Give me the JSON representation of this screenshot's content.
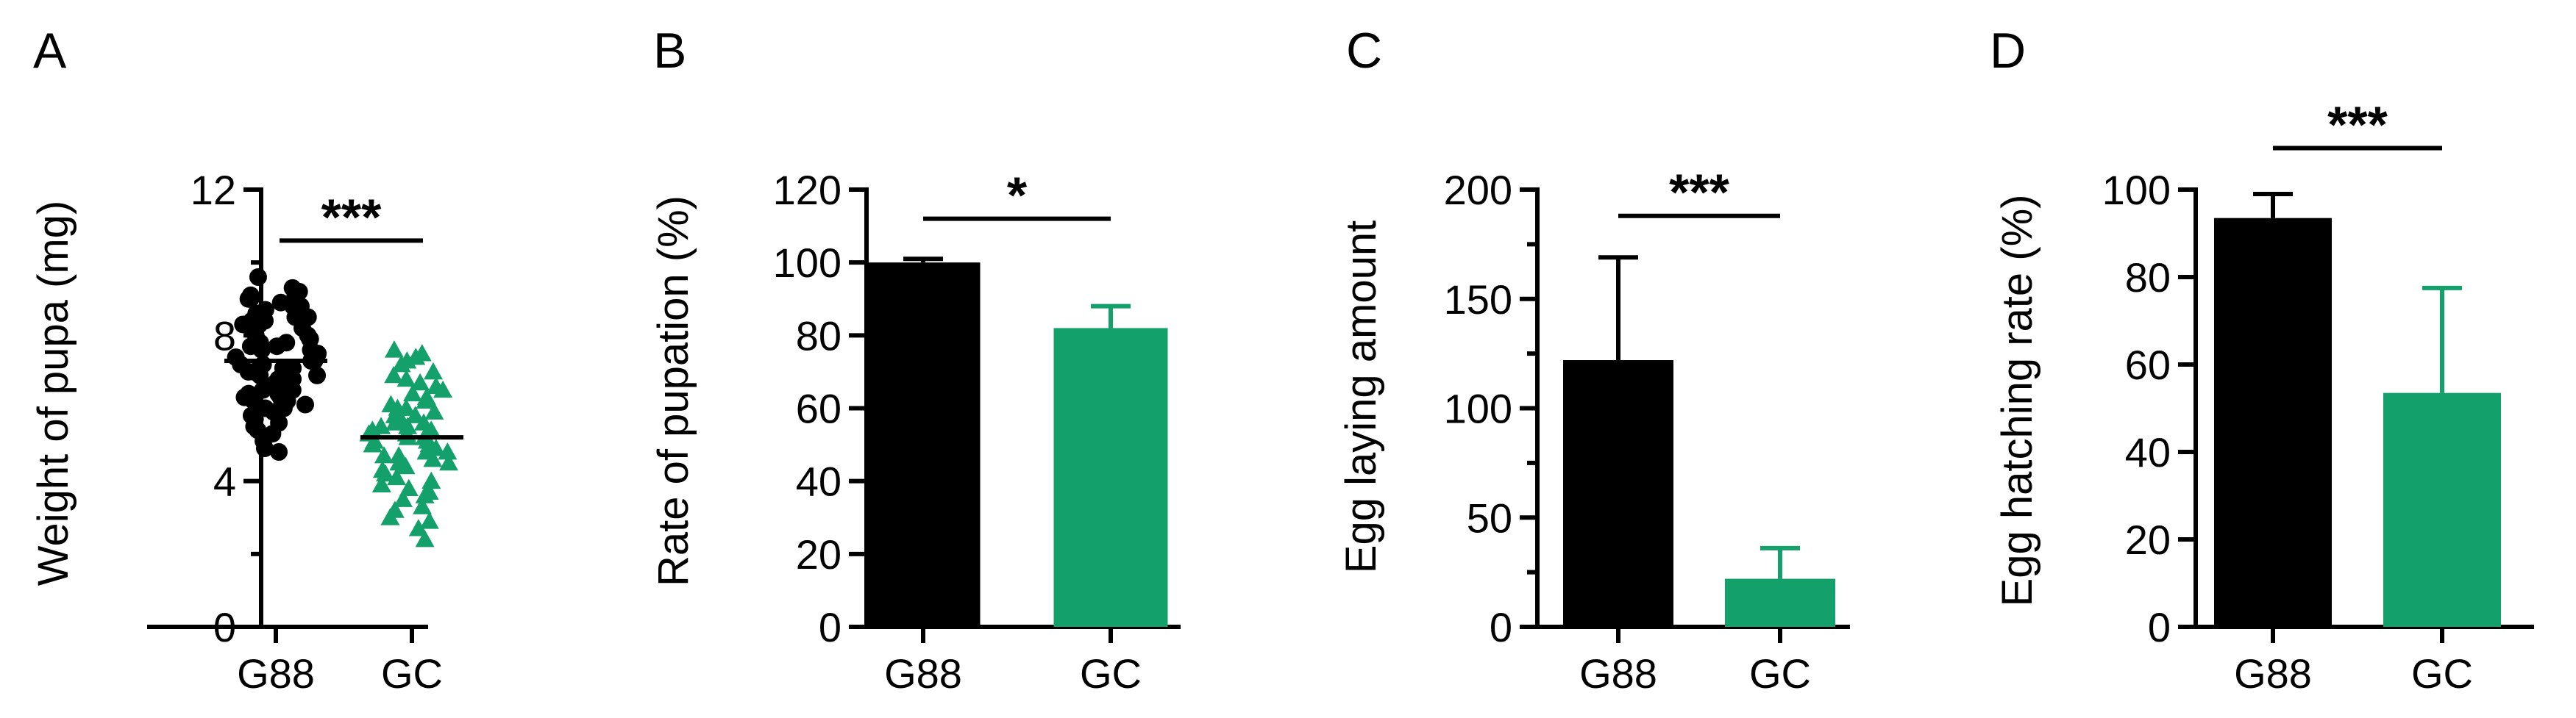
{
  "colors": {
    "g88": "#000000",
    "gc": "#14a06b"
  },
  "chart_data": [
    {
      "panel": "A",
      "type": "scatter",
      "ylabel": "Weight of pupa (mg)",
      "xlabel": "",
      "categories": [
        "G88",
        "GC"
      ],
      "ylim": [
        0,
        12
      ],
      "yticks": [
        0,
        4,
        8,
        12
      ],
      "ytick_labels": [
        "0",
        "4",
        "8",
        "12"
      ],
      "minor_ticks": 1,
      "means": [
        7.3,
        5.2
      ],
      "groups": [
        {
          "name": "G88",
          "marker": "circle",
          "values": [
            9.6,
            9.3,
            9.2,
            9.1,
            9.0,
            9.0,
            8.9,
            8.9,
            8.8,
            8.8,
            8.7,
            8.6,
            8.6,
            8.5,
            8.5,
            8.4,
            8.4,
            8.3,
            8.3,
            8.2,
            8.2,
            8.1,
            8.0,
            8.0,
            7.9,
            7.9,
            7.8,
            7.8,
            7.7,
            7.7,
            7.6,
            7.6,
            7.5,
            7.5,
            7.4,
            7.4,
            7.3,
            7.3,
            7.2,
            7.2,
            7.1,
            7.1,
            7.0,
            7.0,
            6.9,
            6.9,
            6.8,
            6.8,
            6.7,
            6.7,
            6.6,
            6.6,
            6.5,
            6.5,
            6.4,
            6.4,
            6.3,
            6.3,
            6.2,
            6.2,
            6.1,
            6.0,
            6.0,
            5.9,
            5.8,
            5.7,
            5.6,
            5.5,
            5.4,
            5.3,
            5.1,
            4.9,
            4.8
          ]
        },
        {
          "name": "GC",
          "marker": "triangle",
          "values": [
            7.6,
            7.5,
            7.4,
            7.3,
            7.2,
            7.0,
            6.9,
            6.8,
            6.7,
            6.6,
            6.5,
            6.4,
            6.3,
            6.2,
            6.1,
            6.0,
            6.0,
            5.9,
            5.8,
            5.8,
            5.7,
            5.6,
            5.6,
            5.5,
            5.5,
            5.4,
            5.4,
            5.3,
            5.3,
            5.2,
            5.2,
            5.1,
            5.1,
            5.0,
            5.0,
            4.9,
            4.9,
            4.8,
            4.8,
            4.7,
            4.7,
            4.6,
            4.5,
            4.5,
            4.4,
            4.3,
            4.2,
            4.1,
            4.0,
            3.9,
            3.8,
            3.7,
            3.6,
            3.5,
            3.3,
            3.2,
            3.0,
            2.9,
            2.7,
            2.4
          ]
        }
      ],
      "significance": {
        "label": "***",
        "y": 10.6
      }
    },
    {
      "panel": "B",
      "type": "bar",
      "ylabel": "Rate of pupation (%)",
      "xlabel": "",
      "categories": [
        "G88",
        "GC"
      ],
      "values": [
        100,
        82
      ],
      "errors": [
        1,
        6
      ],
      "ylim": [
        0,
        120
      ],
      "yticks": [
        0,
        20,
        40,
        60,
        80,
        100,
        120
      ],
      "ytick_labels": [
        "0",
        "20",
        "40",
        "60",
        "80",
        "100",
        "120"
      ],
      "minor_ticks": 0,
      "significance": {
        "label": "*",
        "y": 112
      }
    },
    {
      "panel": "C",
      "type": "bar",
      "ylabel": "Egg laying amount",
      "xlabel": "",
      "categories": [
        "G88",
        "GC"
      ],
      "values": [
        122,
        22
      ],
      "errors": [
        47,
        14
      ],
      "ylim": [
        0,
        200
      ],
      "yticks": [
        0,
        50,
        100,
        150,
        200
      ],
      "ytick_labels": [
        "0",
        "50",
        "100",
        "150",
        "200"
      ],
      "minor_ticks": 1,
      "significance": {
        "label": "***",
        "y": 188
      }
    },
    {
      "panel": "D",
      "type": "bar",
      "ylabel": "Egg hatching rate (%)",
      "xlabel": "",
      "categories": [
        "G88",
        "GC"
      ],
      "values": [
        93.5,
        53.5
      ],
      "errors": [
        5.5,
        24
      ],
      "ylim": [
        0,
        100
      ],
      "yticks": [
        0,
        20,
        40,
        60,
        80,
        100
      ],
      "ytick_labels": [
        "0",
        "20",
        "40",
        "60",
        "80",
        "100"
      ],
      "minor_ticks": 0,
      "significance": {
        "label": "***",
        "y": 109.5
      }
    }
  ]
}
